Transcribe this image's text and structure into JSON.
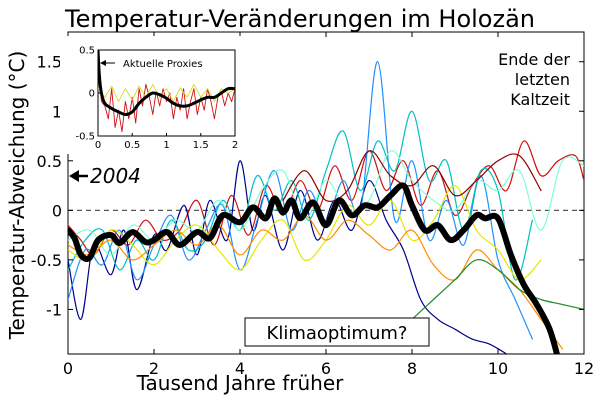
{
  "chart_data": {
    "type": "line",
    "title": "Temperatur-Veränderungen im Holozän",
    "xlabel": "Tausend Jahre früher",
    "ylabel": "Temperatur-Abweichung (°C)",
    "xlim": [
      0,
      12
    ],
    "ylim": [
      -1.45,
      1.8
    ],
    "x_ticks": [
      "0",
      "2",
      "4",
      "6",
      "8",
      "10",
      "12"
    ],
    "y_ticks": [
      "-1",
      "-0.5",
      "0",
      "0.5",
      "1",
      "1.5"
    ],
    "zero_line": true,
    "annotations": {
      "present_marker": "2004",
      "present_value": 0.5,
      "end_ice_age": [
        "Ende der",
        "letzten",
        "Kaltzeit"
      ],
      "climate_optimum": "Klimaoptimum?"
    },
    "series": [
      {
        "color": "#000000",
        "x": [
          0,
          0.15,
          0.3,
          0.5,
          0.7,
          1,
          1.2,
          1.5,
          1.8,
          2,
          2.3,
          2.6,
          3,
          3.3,
          3.6,
          4,
          4.3,
          4.6,
          4.8,
          5,
          5.2,
          5.4,
          5.7,
          6,
          6.3,
          6.6,
          6.9,
          7.2,
          7.5,
          7.8,
          8,
          8.3,
          8.6,
          8.9,
          9.2,
          9.5,
          9.7,
          10,
          10.3,
          10.6,
          10.9,
          11.2,
          11.4
        ],
        "y": [
          -0.2,
          -0.28,
          -0.45,
          -0.48,
          -0.3,
          -0.25,
          -0.33,
          -0.22,
          -0.32,
          -0.3,
          -0.22,
          -0.35,
          -0.22,
          -0.28,
          -0.05,
          -0.12,
          0.03,
          -0.08,
          0.12,
          -0.02,
          0.1,
          -0.08,
          0.08,
          -0.15,
          0.1,
          -0.05,
          0.05,
          0.03,
          0.15,
          0.25,
          0.05,
          -0.2,
          -0.15,
          -0.3,
          -0.2,
          -0.05,
          -0.08,
          -0.08,
          -0.45,
          -0.75,
          -0.95,
          -1.2,
          -1.5
        ]
      },
      {
        "color": "#d01010",
        "x": [
          0,
          0.3,
          0.6,
          1,
          1.4,
          1.8,
          2.2,
          2.6,
          3,
          3.4,
          3.8,
          4.2,
          4.6,
          5,
          5.4,
          5.8,
          6.2,
          6.6,
          7,
          7.4,
          7.8,
          8.2,
          8.6,
          9,
          9.4,
          9.8,
          10.2,
          10.6,
          11,
          11.4,
          11.8,
          12
        ],
        "y": [
          -0.15,
          -0.3,
          -0.45,
          -0.2,
          -0.35,
          -0.1,
          -0.3,
          -0.2,
          0.1,
          -0.35,
          0.15,
          -0.25,
          0.25,
          -0.05,
          0.3,
          0,
          0.45,
          0.1,
          0.6,
          0.2,
          0.5,
          0.05,
          0.4,
          -0.05,
          0.25,
          0.45,
          0.2,
          0.7,
          0.35,
          0.5,
          0.55,
          0.3
        ]
      },
      {
        "color": "#00008b",
        "x": [
          0,
          0.3,
          0.6,
          1,
          1.3,
          1.6,
          2,
          2.3,
          2.7,
          3,
          3.3,
          3.7,
          4,
          4.3,
          4.6,
          5,
          5.4,
          5.8,
          6.2,
          6.6,
          7,
          7.4,
          7.8,
          8.2,
          8.6,
          9,
          9.4,
          9.8,
          10.2
        ],
        "y": [
          -0.5,
          -1.1,
          -0.35,
          -0.65,
          -0.2,
          -0.8,
          -0.25,
          -0.4,
          0.05,
          -0.45,
          0.1,
          -0.3,
          0.5,
          -0.2,
          0.15,
          -0.4,
          0.2,
          -0.3,
          0.1,
          -0.2,
          0.3,
          -0.1,
          -0.4,
          -0.9,
          -1.1,
          -1.2,
          -1.3,
          -1.35,
          -1.45
        ]
      },
      {
        "color": "#1e90ff",
        "x": [
          0,
          0.4,
          0.8,
          1.2,
          1.6,
          2,
          2.4,
          2.8,
          3.2,
          3.6,
          4,
          4.4,
          4.8,
          5.2,
          5.6,
          6,
          6.4,
          6.8,
          7.2,
          7.6,
          8,
          8.4,
          8.8,
          9.2,
          9.6,
          10,
          10.4,
          10.8
        ],
        "y": [
          -0.9,
          -0.4,
          -0.55,
          -0.2,
          -0.7,
          -0.35,
          -0.05,
          -0.5,
          -0.2,
          0.05,
          -0.6,
          -0.1,
          0.4,
          -0.2,
          0.2,
          -0.1,
          0.3,
          0,
          1.5,
          -0.1,
          0.5,
          -0.3,
          0.1,
          -0.35,
          0.35,
          -0.5,
          -0.9,
          -1.3
        ]
      },
      {
        "color": "#00bfbf",
        "x": [
          0,
          0.4,
          0.8,
          1.2,
          1.6,
          2,
          2.4,
          2.8,
          3.2,
          3.6,
          4,
          4.4,
          4.8,
          5.2,
          5.6,
          6,
          6.4,
          6.8,
          7.2,
          7.6,
          8,
          8.4,
          8.8,
          9.2,
          9.6,
          10,
          10.4,
          10.8
        ],
        "y": [
          -0.6,
          -0.3,
          -0.2,
          -0.6,
          -0.3,
          -0.5,
          -0.1,
          -0.4,
          -0.3,
          0.1,
          -0.2,
          0.35,
          0,
          0.3,
          -0.1,
          0.4,
          0.8,
          0.2,
          0.7,
          0.4,
          1,
          0.3,
          0.5,
          -0.2,
          0.4,
          0.2,
          -0.7,
          -0.1
        ]
      },
      {
        "color": "#7fffd4",
        "x": [
          0,
          0.5,
          1,
          1.5,
          2,
          2.5,
          3,
          3.5,
          4,
          4.5,
          5,
          5.5,
          6,
          6.5,
          7,
          7.5,
          8,
          8.5,
          9,
          9.5,
          10,
          10.5,
          11,
          11.5,
          12
        ],
        "y": [
          -0.3,
          -0.2,
          -0.45,
          -0.15,
          -0.3,
          -0.1,
          -0.2,
          0.1,
          -0.2,
          0.2,
          0.4,
          -0.1,
          0.3,
          0,
          0.1,
          0.6,
          0.3,
          0.1,
          0,
          0.3,
          0.2,
          0.4,
          -0.2,
          0.5,
          0.45
        ]
      },
      {
        "color": "#e6e600",
        "x": [
          0,
          0.5,
          1,
          1.5,
          2,
          2.5,
          3,
          3.5,
          4,
          4.5,
          5,
          5.5,
          6,
          6.5,
          7,
          7.5,
          8,
          8.5,
          9,
          9.5,
          10,
          10.5,
          11
        ],
        "y": [
          -0.4,
          -0.5,
          -0.2,
          -0.35,
          -0.55,
          -0.3,
          -0.15,
          -0.4,
          -0.6,
          -0.3,
          -0.1,
          -0.5,
          -0.3,
          0.05,
          -0.15,
          0.1,
          -0.3,
          -0.1,
          0.25,
          -0.2,
          -0.4,
          -0.7,
          -0.5
        ]
      },
      {
        "color": "#ff8c00",
        "x": [
          0,
          0.5,
          1,
          1.5,
          2,
          2.5,
          3,
          3.5,
          4,
          4.5,
          5,
          5.5,
          6,
          6.5,
          7,
          7.5,
          8,
          8.5,
          9,
          9.5,
          10,
          10.5,
          11,
          11.5
        ],
        "y": [
          -0.35,
          -0.45,
          -0.3,
          -0.5,
          -0.35,
          -0.2,
          -0.35,
          -0.15,
          -0.45,
          -0.2,
          -0.3,
          -0.05,
          -0.3,
          -0.1,
          -0.25,
          -0.4,
          -0.2,
          -0.55,
          -0.7,
          -0.4,
          -0.6,
          -0.8,
          -1.1,
          -1.4
        ]
      },
      {
        "color": "#228b22",
        "x": [
          8,
          8.5,
          9,
          9.5,
          10,
          10.5,
          11,
          11.5,
          12
        ],
        "y": [
          -1.1,
          -0.9,
          -0.7,
          -0.5,
          -0.6,
          -0.8,
          -0.9,
          -0.95,
          -1
        ]
      },
      {
        "color": "#8b0000",
        "x": [
          5,
          5.5,
          6,
          6.5,
          7,
          7.5,
          8,
          8.5,
          9,
          9.5,
          10,
          10.5,
          11
        ],
        "y": [
          0.1,
          0.4,
          0.1,
          0.2,
          0.6,
          0.35,
          0.25,
          0.45,
          0.15,
          0.3,
          0.5,
          0.55,
          0.2
        ]
      }
    ],
    "inset": {
      "annotation": "Aktuelle Proxies",
      "xlim": [
        0,
        2
      ],
      "ylim": [
        -0.5,
        0.5
      ],
      "x_ticks": [
        "0",
        "0.5",
        "1",
        "1.5",
        "2"
      ],
      "y_ticks": [
        "-0.5",
        "0",
        "0.5"
      ],
      "series": [
        {
          "color": "#d01010",
          "x": [
            0,
            0.05,
            0.1,
            0.15,
            0.2,
            0.25,
            0.3,
            0.35,
            0.4,
            0.45,
            0.5,
            0.55,
            0.6,
            0.65,
            0.7,
            0.75,
            0.8,
            0.85,
            0.9,
            0.95,
            1,
            1.05,
            1.1,
            1.15,
            1.2,
            1.25,
            1.3,
            1.35,
            1.4,
            1.45,
            1.5,
            1.55,
            1.6,
            1.65,
            1.7,
            1.75,
            1.8,
            1.85,
            1.9,
            1.95,
            2
          ],
          "y": [
            0.35,
            -0.1,
            -0.15,
            -0.3,
            0.05,
            -0.4,
            -0.2,
            -0.45,
            -0.1,
            -0.3,
            -0.05,
            -0.35,
            0.05,
            -0.15,
            0.1,
            -0.05,
            -0.25,
            0.02,
            -0.15,
            0.05,
            -0.1,
            0.0,
            -0.3,
            -0.05,
            -0.2,
            0.05,
            -0.3,
            -0.1,
            0.05,
            -0.25,
            -0.05,
            -0.2,
            0.05,
            -0.1,
            -0.3,
            -0.05,
            0.02,
            -0.15,
            0.0,
            -0.1,
            0.05
          ]
        },
        {
          "color": "#d8d820",
          "x": [
            0,
            0.1,
            0.2,
            0.3,
            0.4,
            0.5,
            0.6,
            0.7,
            0.8,
            0.9,
            1,
            1.1,
            1.2,
            1.3,
            1.4,
            1.5,
            1.6,
            1.7,
            1.8,
            1.9,
            2
          ],
          "y": [
            0.05,
            -0.05,
            0.08,
            -0.1,
            0.05,
            -0.08,
            0.08,
            -0.05,
            0.1,
            -0.05,
            0.05,
            -0.1,
            0.06,
            -0.05,
            0.1,
            -0.05,
            0.05,
            -0.1,
            0.05,
            0.0,
            0.05
          ]
        },
        {
          "color": "#000000",
          "x": [
            0,
            0.02,
            0.05,
            0.1,
            0.2,
            0.3,
            0.4,
            0.5,
            0.6,
            0.7,
            0.8,
            0.9,
            1,
            1.1,
            1.2,
            1.3,
            1.4,
            1.5,
            1.6,
            1.7,
            1.8,
            1.9,
            2
          ],
          "y": [
            0.5,
            0.2,
            0.0,
            -0.12,
            -0.18,
            -0.22,
            -0.25,
            -0.22,
            -0.12,
            -0.05,
            0.0,
            -0.02,
            -0.06,
            -0.12,
            -0.15,
            -0.15,
            -0.12,
            -0.08,
            -0.05,
            -0.05,
            0.0,
            0.05,
            0.05
          ]
        }
      ]
    }
  }
}
